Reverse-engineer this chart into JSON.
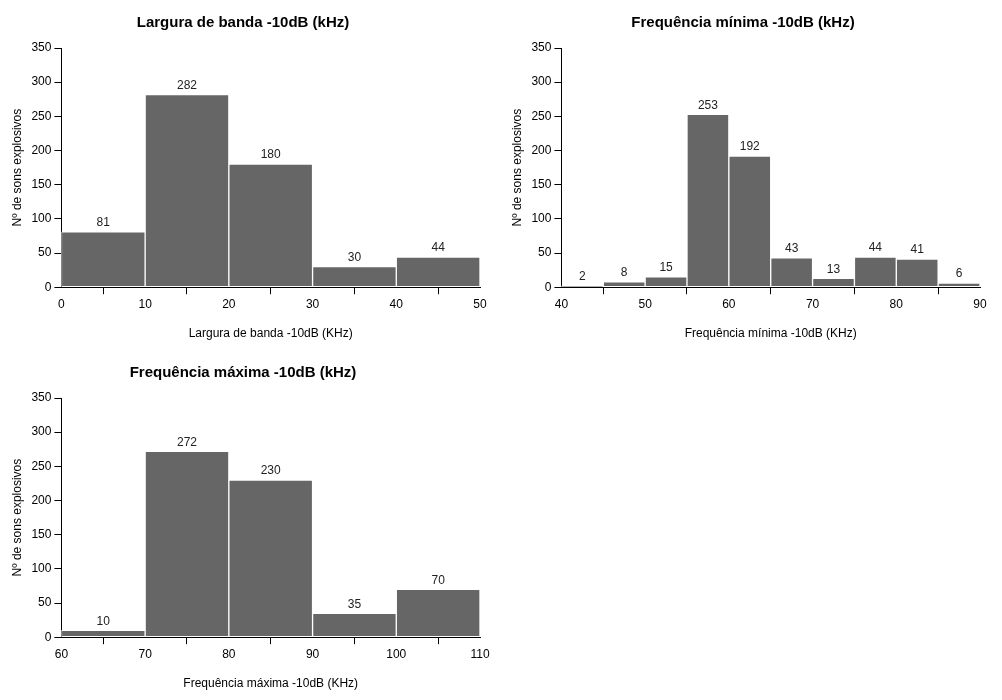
{
  "chart_data": [
    {
      "type": "histogram",
      "title": "Largura de banda -10dB (kHz)",
      "xlabel": "Largura de banda -10dB (KHz)",
      "ylabel": "Nº de sons explosivos",
      "color": "#666666",
      "data_labels": true,
      "bins": [
        0,
        10,
        20,
        30,
        40,
        50
      ],
      "values": [
        81,
        282,
        180,
        30,
        44
      ],
      "xlim": [
        0,
        50
      ],
      "xticks": [
        0,
        10,
        20,
        30,
        40,
        50
      ],
      "ylim": [
        0,
        350
      ],
      "yticks": [
        0,
        50,
        100,
        150,
        200,
        250,
        300,
        350
      ]
    },
    {
      "type": "histogram",
      "title": "Frequência mínima -10dB (kHz)",
      "xlabel": "Frequência mínima -10dB (KHz)",
      "ylabel": "Nº de sons explosivos",
      "color": "#666666",
      "data_labels": true,
      "bins": [
        40,
        45,
        50,
        55,
        60,
        65,
        70,
        75,
        80,
        85,
        90
      ],
      "values": [
        2,
        8,
        15,
        253,
        192,
        43,
        13,
        44,
        41,
        6
      ],
      "xlim": [
        40,
        90
      ],
      "xticks": [
        40,
        50,
        60,
        70,
        80,
        90
      ],
      "ylim": [
        0,
        350
      ],
      "yticks": [
        0,
        50,
        100,
        150,
        200,
        250,
        300,
        350
      ]
    },
    {
      "type": "histogram",
      "title": "Frequência máxima -10dB (kHz)",
      "xlabel": "Frequência máxima -10dB (KHz)",
      "ylabel": "Nº de sons explosivos",
      "color": "#666666",
      "data_labels": true,
      "bins": [
        60,
        70,
        80,
        90,
        100,
        110
      ],
      "values": [
        10,
        272,
        230,
        35,
        70
      ],
      "xlim": [
        60,
        110
      ],
      "xticks": [
        60,
        70,
        80,
        90,
        100,
        110
      ],
      "ylim": [
        0,
        350
      ],
      "yticks": [
        0,
        50,
        100,
        150,
        200,
        250,
        300,
        350
      ]
    }
  ]
}
